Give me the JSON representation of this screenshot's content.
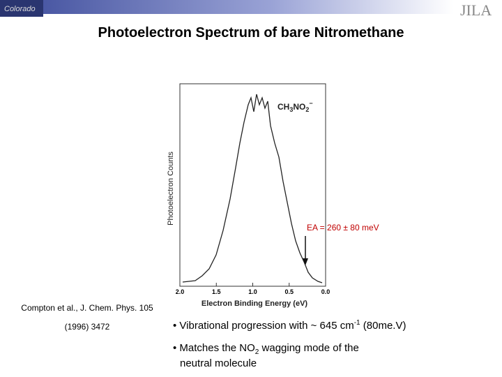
{
  "header": {
    "title": "Photoelectron Spectrum of bare Nitromethane",
    "logo_left": "Colorado",
    "logo_right": "JILA"
  },
  "figure": {
    "y_label": "Photoelectron Counts",
    "x_label": "Electron Binding Energy (eV)",
    "x_ticks": [
      "2.0",
      "1.5",
      "1.0",
      "0.5",
      "0.0"
    ],
    "species": {
      "a": "CH",
      "b": "3",
      "c": "NO",
      "d": "2",
      "e": "−"
    },
    "ea": "EA = 260 ± 80 meV"
  },
  "citation": [
    "Compton et al., J. Chem. Phys. 105",
    "(1996) 3472"
  ],
  "bullets": [
    {
      "text": "• Vibrational progression with ~ 645 cm",
      "sup": "-1",
      "tail": " (80me.V)"
    },
    {
      "text": "• Matches the NO",
      "sub": "2",
      "tail": " wagging mode of the",
      "line2": "neutral molecule"
    }
  ]
}
